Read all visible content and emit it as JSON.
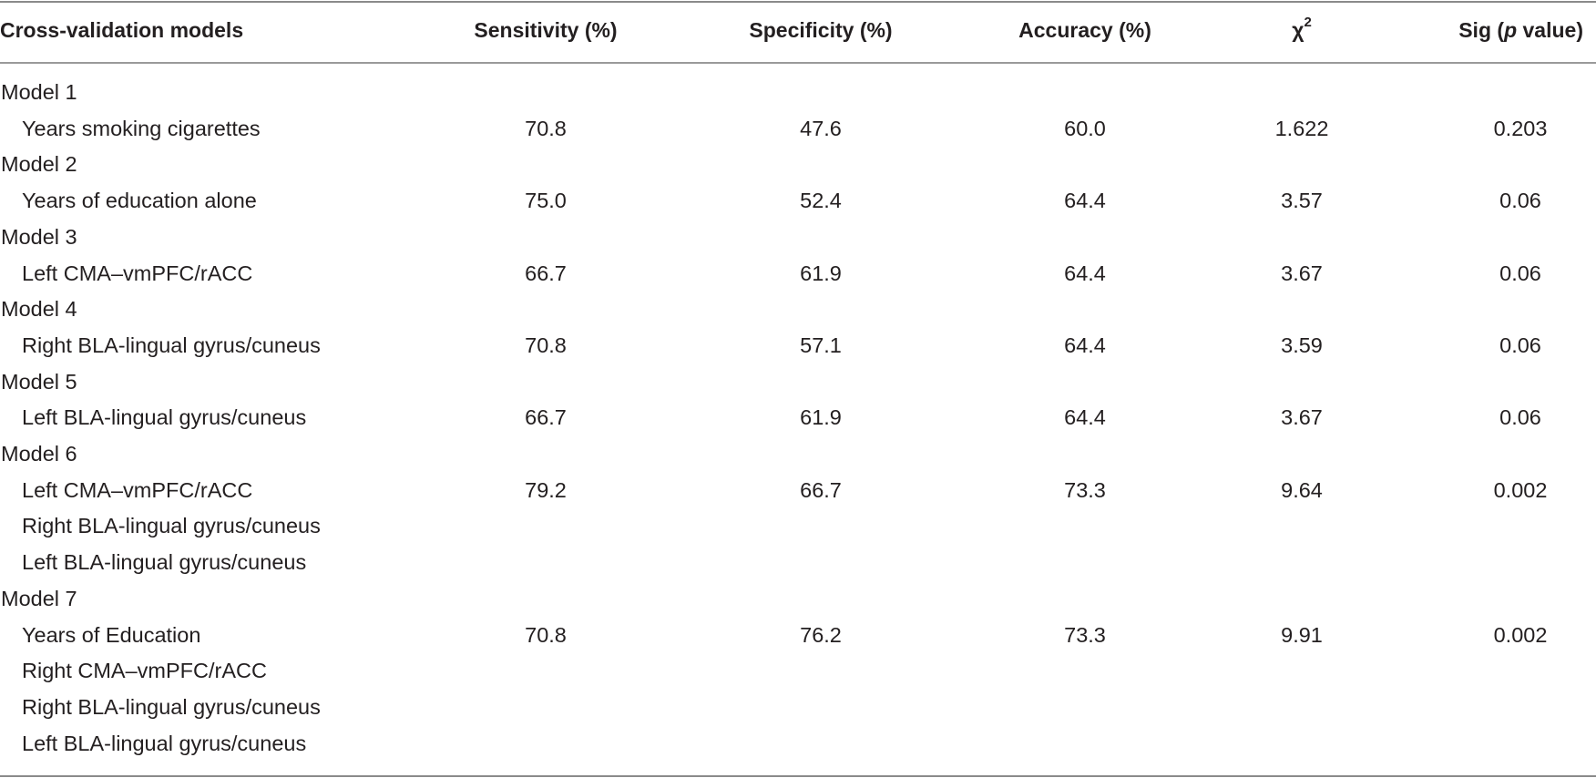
{
  "table": {
    "headers": {
      "model": "Cross-validation models",
      "sensitivity": "Sensitivity (%)",
      "specificity": "Specificity (%)",
      "accuracy": "Accuracy (%)",
      "chi_symbol": "χ",
      "chi_sup": "2",
      "sig_prefix": "Sig (",
      "sig_p": "p",
      "sig_suffix": " value)"
    },
    "rows": [
      {
        "type": "model",
        "label": "Model 1"
      },
      {
        "type": "data",
        "label": "Years smoking cigarettes",
        "sensitivity": "70.8",
        "specificity": "47.6",
        "accuracy": "60.0",
        "chi2": "1.622",
        "sig": "0.203"
      },
      {
        "type": "model",
        "label": "Model 2"
      },
      {
        "type": "data",
        "label": "Years of education alone",
        "sensitivity": "75.0",
        "specificity": "52.4",
        "accuracy": "64.4",
        "chi2": "3.57",
        "sig": "0.06"
      },
      {
        "type": "model",
        "label": "Model 3"
      },
      {
        "type": "data",
        "label": "Left CMA–vmPFC/rACC",
        "sensitivity": "66.7",
        "specificity": "61.9",
        "accuracy": "64.4",
        "chi2": "3.67",
        "sig": "0.06"
      },
      {
        "type": "model",
        "label": "Model 4"
      },
      {
        "type": "data",
        "label": "Right BLA-lingual gyrus/cuneus",
        "sensitivity": "70.8",
        "specificity": "57.1",
        "accuracy": "64.4",
        "chi2": "3.59",
        "sig": "0.06"
      },
      {
        "type": "model",
        "label": "Model 5"
      },
      {
        "type": "data",
        "label": "Left BLA-lingual gyrus/cuneus",
        "sensitivity": "66.7",
        "specificity": "61.9",
        "accuracy": "64.4",
        "chi2": "3.67",
        "sig": "0.06"
      },
      {
        "type": "model",
        "label": "Model 6"
      },
      {
        "type": "data",
        "label": "Left CMA–vmPFC/rACC",
        "sensitivity": "79.2",
        "specificity": "66.7",
        "accuracy": "73.3",
        "chi2": "9.64",
        "sig": "0.002"
      },
      {
        "type": "sub",
        "label": "Right BLA-lingual gyrus/cuneus"
      },
      {
        "type": "sub",
        "label": "Left BLA-lingual gyrus/cuneus"
      },
      {
        "type": "model",
        "label": "Model 7"
      },
      {
        "type": "data",
        "label": "Years of Education",
        "sensitivity": "70.8",
        "specificity": "76.2",
        "accuracy": "73.3",
        "chi2": "9.91",
        "sig": "0.002"
      },
      {
        "type": "sub",
        "label": "Right CMA–vmPFC/rACC"
      },
      {
        "type": "sub",
        "label": "Right BLA-lingual gyrus/cuneus"
      },
      {
        "type": "sub",
        "label": "Left BLA-lingual gyrus/cuneus"
      }
    ]
  }
}
